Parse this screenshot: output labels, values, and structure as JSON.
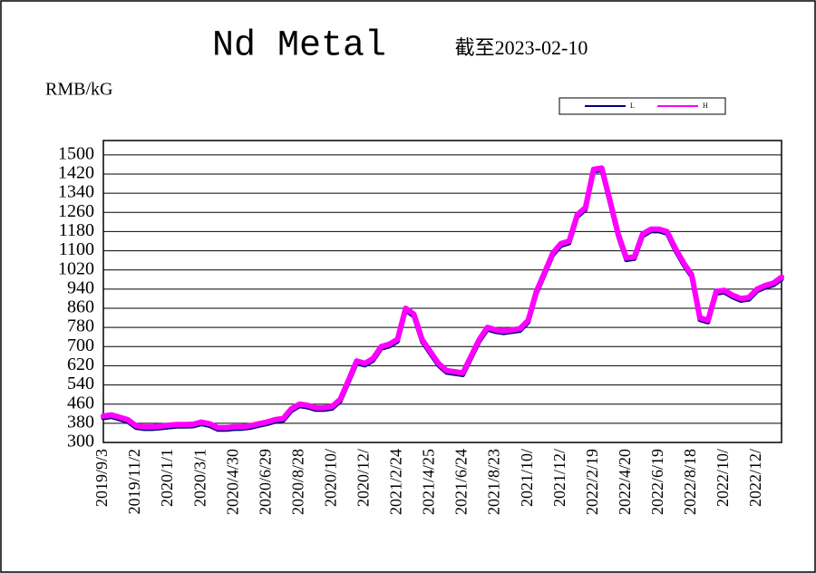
{
  "chart_data": {
    "type": "line",
    "title": "Nd Metal",
    "subtitle": "截至2023-02-10",
    "y_label": "RMB/kG",
    "categories": [
      "2019/9/3",
      null,
      null,
      null,
      "2019/11/2",
      null,
      null,
      null,
      "2020/1/1",
      null,
      null,
      null,
      "2020/3/1",
      null,
      null,
      null,
      "2020/4/30",
      null,
      null,
      null,
      "2020/6/29",
      null,
      null,
      null,
      "2020/8/28",
      null,
      null,
      null,
      "2020/10/",
      null,
      null,
      null,
      "2020/12/",
      null,
      null,
      null,
      "2021/2/24",
      null,
      null,
      null,
      "2021/4/25",
      null,
      null,
      null,
      "2021/6/24",
      null,
      null,
      null,
      "2021/8/23",
      null,
      null,
      null,
      "2021/10/",
      null,
      null,
      null,
      "2021/12/",
      null,
      null,
      null,
      "2022/2/19",
      null,
      null,
      null,
      "2022/4/20",
      null,
      null,
      null,
      "2022/6/19",
      null,
      null,
      null,
      "2022/8/18",
      null,
      null,
      null,
      "2022/10/",
      null,
      null,
      null,
      "2022/12/",
      null,
      null,
      null
    ],
    "series": [
      {
        "name": "L",
        "color": "#000080",
        "values": [
          402,
          407,
          397,
          387,
          362,
          357,
          357,
          360,
          364,
          367,
          367,
          368,
          377,
          370,
          354,
          354,
          357,
          358,
          362,
          370,
          377,
          387,
          392,
          432,
          452,
          447,
          437,
          437,
          442,
          472,
          552,
          632,
          622,
          642,
          692,
          702,
          722,
          852,
          827,
          722,
          672,
          622,
          592,
          587,
          582,
          652,
          722,
          772,
          762,
          757,
          762,
          767,
          802,
          922,
          1002,
          1082,
          1122,
          1132,
          1242,
          1272,
          1432,
          1437,
          1302,
          1162,
          1062,
          1067,
          1162,
          1182,
          1182,
          1172,
          1102,
          1042,
          992,
          812,
          802,
          922,
          927,
          907,
          892,
          897,
          932,
          947,
          957,
          982
        ]
      },
      {
        "name": "H",
        "color": "#ff00ff",
        "values": [
          410,
          415,
          405,
          395,
          370,
          365,
          365,
          368,
          372,
          375,
          375,
          376,
          385,
          378,
          362,
          362,
          365,
          366,
          370,
          378,
          385,
          395,
          400,
          440,
          460,
          455,
          445,
          445,
          450,
          480,
          560,
          640,
          630,
          650,
          700,
          710,
          730,
          860,
          835,
          730,
          680,
          630,
          600,
          595,
          590,
          660,
          730,
          780,
          770,
          765,
          770,
          775,
          810,
          930,
          1010,
          1090,
          1130,
          1140,
          1250,
          1280,
          1440,
          1445,
          1310,
          1170,
          1070,
          1075,
          1170,
          1190,
          1190,
          1180,
          1110,
          1050,
          1000,
          820,
          810,
          930,
          935,
          915,
          900,
          905,
          940,
          955,
          965,
          990
        ]
      }
    ],
    "ylim": [
      300,
      1560
    ],
    "yticks": [
      300,
      380,
      460,
      540,
      620,
      700,
      780,
      860,
      940,
      1020,
      1100,
      1180,
      1260,
      1340,
      1420,
      1500
    ],
    "grid": true
  }
}
